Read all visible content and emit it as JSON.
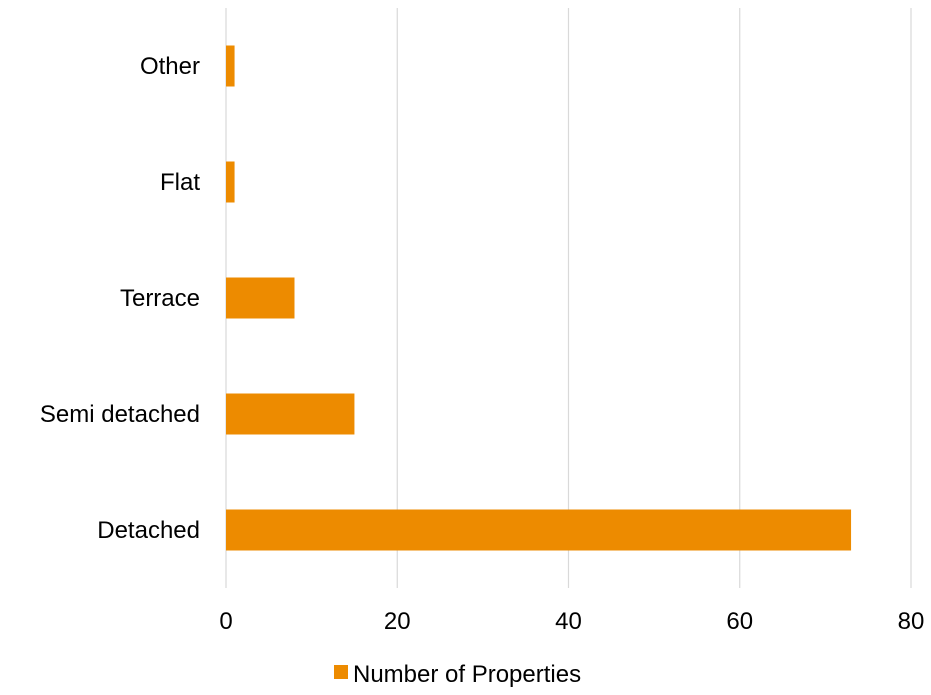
{
  "chart_data": {
    "type": "bar",
    "orientation": "horizontal",
    "categories": [
      "Other",
      "Flat",
      "Terrace",
      "Semi detached",
      "Detached"
    ],
    "series": [
      {
        "name": "Number of Properties",
        "values": [
          1,
          1,
          8,
          15,
          73
        ],
        "color": "#ED8B00"
      }
    ],
    "xlim": [
      0,
      80
    ],
    "xticks": [
      "0",
      "20",
      "40",
      "60",
      "80"
    ],
    "grid": "vertical",
    "gridColor": "#D9D9D9",
    "legend_position": "bottom"
  }
}
